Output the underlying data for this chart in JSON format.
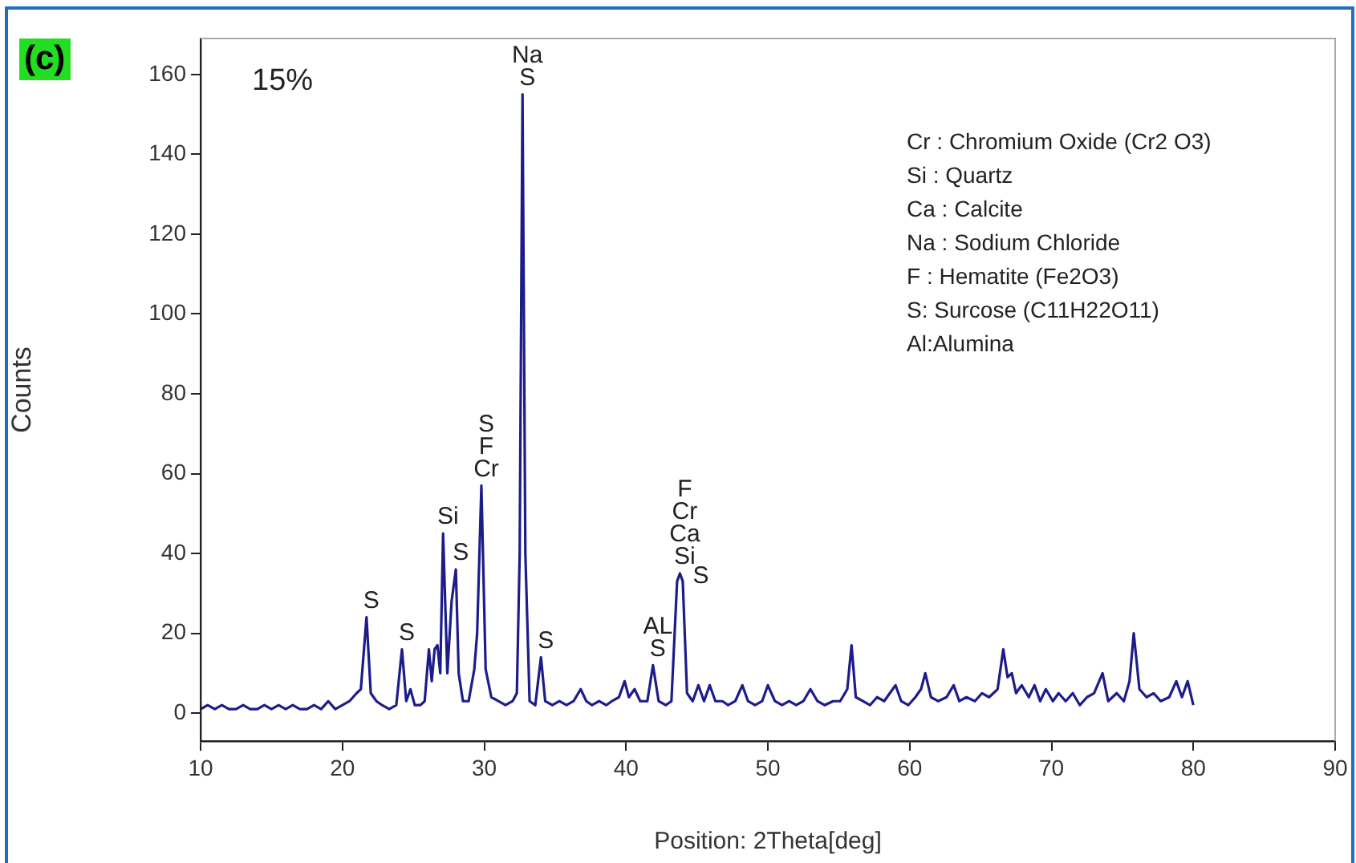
{
  "chart_data": {
    "type": "line",
    "xlabel": "Position: 2Theta[deg]",
    "ylabel": "Counts",
    "x": [
      10,
      10.5,
      11,
      11.5,
      12,
      12.5,
      13,
      13.5,
      14,
      14.5,
      15,
      15.5,
      16,
      16.5,
      17,
      17.5,
      18,
      18.5,
      19,
      19.5,
      20,
      20.5,
      21,
      21.3,
      21.7,
      22,
      22.4,
      22.8,
      23.3,
      23.8,
      24.2,
      24.5,
      24.8,
      25.1,
      25.5,
      25.8,
      26.1,
      26.3,
      26.5,
      26.7,
      26.9,
      27.1,
      27.4,
      27.7,
      28,
      28.2,
      28.5,
      28.9,
      29.3,
      29.5,
      29.8,
      30.1,
      30.5,
      31,
      31.5,
      32,
      32.3,
      32.5,
      32.7,
      32.9,
      33.2,
      33.6,
      34,
      34.3,
      34.8,
      35.3,
      35.8,
      36.3,
      36.8,
      37.2,
      37.6,
      38.1,
      38.6,
      39,
      39.5,
      39.9,
      40.2,
      40.6,
      41,
      41.5,
      41.9,
      42.3,
      42.8,
      43.2,
      43.6,
      43.8,
      44,
      44.3,
      44.7,
      45.1,
      45.5,
      45.9,
      46.3,
      46.8,
      47.2,
      47.7,
      48.2,
      48.6,
      49.1,
      49.6,
      50,
      50.5,
      51,
      51.5,
      52,
      52.5,
      53,
      53.5,
      54,
      54.6,
      55.1,
      55.6,
      55.9,
      56.2,
      56.7,
      57.2,
      57.7,
      58.2,
      58.6,
      59,
      59.4,
      59.9,
      60.4,
      60.8,
      61.1,
      61.5,
      62,
      62.6,
      63.1,
      63.5,
      64,
      64.6,
      65.1,
      65.6,
      66.2,
      66.6,
      66.9,
      67.2,
      67.5,
      67.9,
      68.4,
      68.8,
      69.2,
      69.6,
      70.1,
      70.5,
      71,
      71.5,
      72,
      72.5,
      73,
      73.6,
      74,
      74.6,
      75.1,
      75.5,
      75.8,
      76.2,
      76.7,
      77.2,
      77.7,
      78.3,
      78.8,
      79.2,
      79.6,
      80
    ],
    "series": [
      {
        "color": "#1c1c8a",
        "values": [
          1,
          2,
          1,
          2,
          1,
          1,
          2,
          1,
          1,
          2,
          1,
          2,
          1,
          2,
          1,
          1,
          2,
          1,
          3,
          1,
          2,
          3,
          5,
          6,
          24,
          5,
          3,
          2,
          1,
          2,
          16,
          3,
          6,
          2,
          2,
          3,
          16,
          8,
          16,
          17,
          10,
          45,
          10,
          28,
          36,
          10,
          3,
          3,
          11,
          20,
          57,
          11,
          4,
          3,
          2,
          3,
          5,
          40,
          155,
          40,
          3,
          2,
          14,
          3,
          2,
          3,
          2,
          3,
          6,
          3,
          2,
          3,
          2,
          3,
          4,
          8,
          4,
          6,
          3,
          3,
          12,
          3,
          2,
          3,
          33,
          35,
          33,
          5,
          3,
          7,
          3,
          7,
          3,
          3,
          2,
          3,
          7,
          3,
          2,
          3,
          7,
          3,
          2,
          3,
          2,
          3,
          6,
          3,
          2,
          3,
          3,
          6,
          17,
          4,
          3,
          2,
          4,
          3,
          5,
          7,
          3,
          2,
          4,
          6,
          10,
          4,
          3,
          4,
          7,
          3,
          4,
          3,
          5,
          4,
          6,
          16,
          9,
          10,
          5,
          7,
          4,
          7,
          3,
          6,
          3,
          5,
          3,
          5,
          2,
          4,
          5,
          10,
          3,
          5,
          3,
          8,
          20,
          6,
          4,
          5,
          3,
          4,
          8,
          4,
          8,
          2
        ]
      }
    ],
    "xlim": [
      10,
      90
    ],
    "xticks": [
      10,
      20,
      30,
      40,
      50,
      60,
      70,
      80,
      90
    ],
    "ylim": [
      -7,
      169
    ],
    "yticks": [
      0,
      20,
      40,
      60,
      80,
      100,
      120,
      140,
      160
    ],
    "grid": false,
    "legend": false,
    "marker": "none",
    "line_style": "solid",
    "annotations": [
      "(c)",
      "15%",
      "Cr : Chromium Oxide (Cr2 O3)",
      "Si : Quartz",
      "Ca : Calcite",
      "Na : Sodium Chloride",
      "F : Hematite (Fe2O3)",
      "S: Surcose (C11H22O11)",
      "Al:Alumina",
      {
        "text": "Na",
        "x": 32.7,
        "y": 155
      },
      {
        "text": "S",
        "x": 32.7,
        "y": 155
      },
      {
        "text": "S",
        "x": 29.8,
        "y": 57
      },
      {
        "text": "F",
        "x": 29.8,
        "y": 57
      },
      {
        "text": "Cr",
        "x": 29.8,
        "y": 57
      },
      {
        "text": "Si",
        "x": 27.1,
        "y": 45
      },
      {
        "text": "S",
        "x": 28,
        "y": 36
      },
      {
        "text": "S",
        "x": 21.7,
        "y": 24
      },
      {
        "text": "S",
        "x": 24.2,
        "y": 16
      },
      {
        "text": "S",
        "x": 34,
        "y": 14
      },
      {
        "text": "AL",
        "x": 41.9,
        "y": 12
      },
      {
        "text": "S",
        "x": 41.9,
        "y": 12
      },
      {
        "text": "F",
        "x": 43.8,
        "y": 35
      },
      {
        "text": "Cr",
        "x": 43.8,
        "y": 35
      },
      {
        "text": "Ca",
        "x": 43.8,
        "y": 35
      },
      {
        "text": "Si",
        "x": 43.8,
        "y": 35
      },
      {
        "text": "S",
        "x": 43.8,
        "y": 35
      }
    ]
  }
}
